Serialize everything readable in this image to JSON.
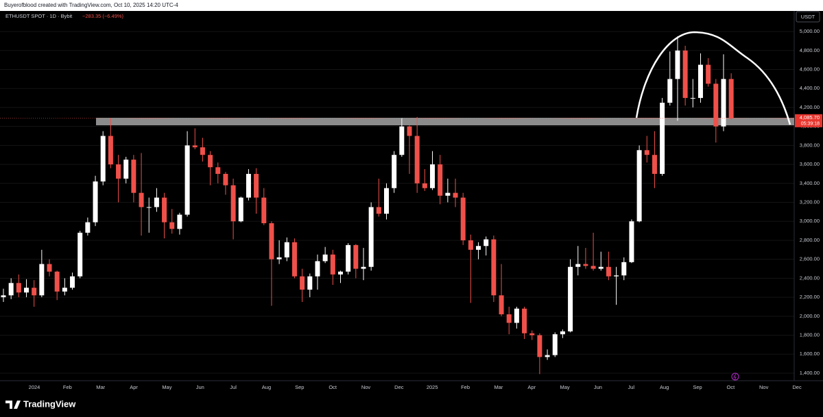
{
  "header": "Buyerofblood created with TradingView.com, Oct 10, 2025 14:20 UTC-4",
  "footer": "TradingView",
  "chart_data": {
    "type": "candlestick",
    "title": "ETHUSDT SPOT · 1D · Bybit",
    "change_label": "−283.35 (−6.49%)",
    "currency": "USDT",
    "up_color": "#ffffff",
    "down_color": "#f0504a",
    "grid": true,
    "ylim": [
      1342,
      5217
    ],
    "yticks": [
      {
        "value": 1400,
        "label": "1,400.00"
      },
      {
        "value": 1600,
        "label": "1,600.00"
      },
      {
        "value": 1800,
        "label": "1,800.00"
      },
      {
        "value": 2000,
        "label": "2,000.00"
      },
      {
        "value": 2200,
        "label": "2,200.00"
      },
      {
        "value": 2400,
        "label": "2,400.00"
      },
      {
        "value": 2600,
        "label": "2,600.00"
      },
      {
        "value": 2800,
        "label": "2,800.00"
      },
      {
        "value": 3000,
        "label": "3,000.00"
      },
      {
        "value": 3200,
        "label": "3,200.00"
      },
      {
        "value": 3400,
        "label": "3,400.00"
      },
      {
        "value": 3600,
        "label": "3,600.00"
      },
      {
        "value": 3800,
        "label": "3,800.00"
      },
      {
        "value": 4000,
        "label": "4,000.00"
      },
      {
        "value": 4200,
        "label": "4,200.00"
      },
      {
        "value": 4400,
        "label": "4,400.00"
      },
      {
        "value": 4600,
        "label": "4,600.00"
      },
      {
        "value": 4800,
        "label": "4,800.00"
      },
      {
        "value": 5000,
        "label": "5,000.00"
      }
    ],
    "x_tick_labels": [
      "2024",
      "Feb",
      "Mar",
      "Apr",
      "May",
      "Jun",
      "Jul",
      "Aug",
      "Sep",
      "Oct",
      "Nov",
      "Dec",
      "2025",
      "Feb",
      "Mar",
      "Apr",
      "May",
      "Jun",
      "Jul",
      "Aug",
      "Sep",
      "Oct",
      "Nov",
      "Dec"
    ],
    "last_price": {
      "value": 4085.7,
      "label": "4,085.70"
    },
    "countdown": "05:39:18",
    "open": [
      2200,
      2220,
      2350,
      2250,
      2300,
      2220,
      2550,
      2470,
      2260,
      2300,
      2420,
      2880,
      2990,
      3420,
      3900,
      3600,
      3450,
      3650,
      3300,
      3150,
      3150,
      3250,
      2990,
      2920,
      3070,
      3800,
      3780,
      3700,
      3570,
      3500,
      3380,
      3000,
      3250,
      3500,
      3250,
      2980,
      2600,
      2620,
      2780,
      2420,
      2280,
      2420,
      2580,
      2650,
      2440,
      2470,
      2750,
      2500,
      2520,
      3150,
      3080,
      3350,
      3700,
      4000,
      3900,
      3400,
      3350,
      3600,
      3270,
      3300,
      3250,
      2800,
      2700,
      2740,
      2810,
      2220,
      2020,
      1930,
      2080,
      1820,
      1800,
      1570,
      1590,
      1810,
      1840,
      2520,
      2550,
      2530,
      2500,
      2520,
      2420,
      2430,
      2570,
      3000,
      3750,
      3700,
      3500,
      4250,
      4500,
      4800,
      4300,
      4300,
      4650,
      4450,
      4000,
      4500
    ],
    "high": [
      2290,
      2400,
      2440,
      2390,
      2380,
      2700,
      2600,
      2480,
      2400,
      2460,
      2900,
      3040,
      3480,
      3950,
      4090,
      3700,
      3680,
      3700,
      3720,
      3250,
      3350,
      3300,
      3130,
      3090,
      3950,
      3980,
      3880,
      3740,
      3620,
      3520,
      3450,
      3260,
      3550,
      3560,
      3350,
      3000,
      2800,
      2830,
      2820,
      2500,
      2450,
      2650,
      2730,
      2700,
      2480,
      2770,
      2760,
      2720,
      3200,
      3450,
      3400,
      3740,
      4090,
      4010,
      4100,
      3550,
      3740,
      3700,
      3450,
      3450,
      3300,
      2860,
      2780,
      2840,
      2850,
      2550,
      2100,
      2100,
      2100,
      1850,
      1820,
      1650,
      1830,
      1860,
      2600,
      2740,
      2720,
      2880,
      2680,
      2680,
      2520,
      2620,
      3020,
      3800,
      3900,
      3950,
      4300,
      4790,
      4950,
      4850,
      4500,
      4770,
      4720,
      4500,
      4760,
      4560
    ],
    "low": [
      2150,
      2180,
      2200,
      2200,
      2100,
      2200,
      2420,
      2170,
      2220,
      2280,
      2400,
      2850,
      2950,
      3380,
      3560,
      3200,
      3400,
      3200,
      2850,
      2880,
      3100,
      2820,
      2870,
      2860,
      3050,
      3760,
      3630,
      3380,
      3400,
      3280,
      2810,
      2990,
      3220,
      3080,
      2960,
      2110,
      2550,
      2580,
      2400,
      2150,
      2200,
      2280,
      2560,
      2330,
      2350,
      2440,
      2400,
      2380,
      2480,
      3050,
      3020,
      3300,
      3680,
      3500,
      3300,
      3320,
      3330,
      3180,
      3200,
      3150,
      2750,
      2140,
      2600,
      2640,
      2150,
      2000,
      1810,
      1870,
      1760,
      1750,
      1390,
      1540,
      1570,
      1770,
      1830,
      2430,
      2500,
      2480,
      2480,
      2380,
      2120,
      2380,
      2560,
      2990,
      3620,
      3350,
      3480,
      4220,
      4060,
      4220,
      4200,
      4250,
      4420,
      3830,
      3950,
      4070
    ],
    "close": [
      2220,
      2350,
      2250,
      2300,
      2220,
      2550,
      2470,
      2260,
      2300,
      2420,
      2880,
      2990,
      3420,
      3900,
      3600,
      3450,
      3650,
      3300,
      3150,
      3150,
      3250,
      2990,
      2920,
      3070,
      3800,
      3780,
      3700,
      3570,
      3500,
      3380,
      3000,
      3250,
      3500,
      3250,
      2980,
      2600,
      2620,
      2780,
      2420,
      2280,
      2420,
      2580,
      2650,
      2440,
      2470,
      2750,
      2500,
      2520,
      3150,
      3080,
      3350,
      3700,
      4000,
      3900,
      3400,
      3350,
      3600,
      3270,
      3300,
      3250,
      2800,
      2700,
      2740,
      2810,
      2220,
      2020,
      1930,
      2080,
      1820,
      1800,
      1570,
      1590,
      1810,
      1840,
      2520,
      2550,
      2530,
      2500,
      2520,
      2420,
      2430,
      2570,
      3000,
      3750,
      3700,
      3500,
      4250,
      4500,
      4800,
      4300,
      4300,
      4650,
      4450,
      4000,
      4500,
      4085.7
    ]
  }
}
